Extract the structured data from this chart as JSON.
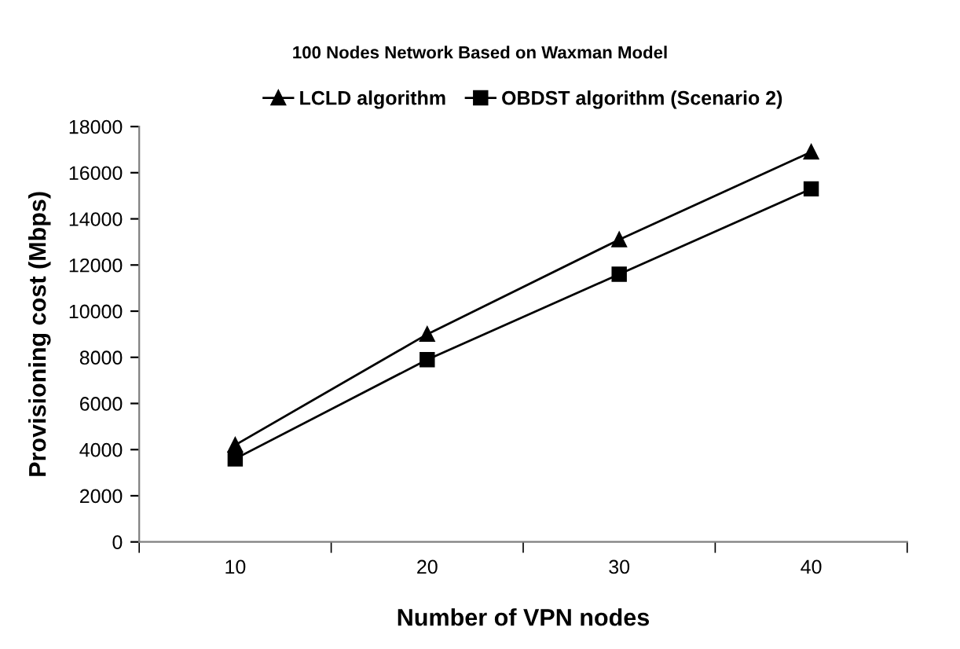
{
  "chart_data": {
    "type": "line",
    "title": "100 Nodes Network Based on Waxman Model",
    "xlabel": "Number of VPN nodes",
    "ylabel": "Provisioning cost (Mbps)",
    "categories": [
      "10",
      "20",
      "30",
      "40"
    ],
    "series": [
      {
        "name": "LCLD algorithm",
        "color": "#000000",
        "marker": "triangle",
        "values": [
          4200,
          9000,
          13100,
          16900
        ]
      },
      {
        "name": "OBDST algorithm (Scenario 2)",
        "color": "#000000",
        "marker": "square",
        "values": [
          3600,
          7900,
          11600,
          15300
        ]
      }
    ],
    "ylim": [
      0,
      18000
    ],
    "yticks": [
      0,
      2000,
      4000,
      6000,
      8000,
      10000,
      12000,
      14000,
      16000,
      18000
    ],
    "grid": false,
    "legend": "top",
    "line_style": "solid"
  }
}
